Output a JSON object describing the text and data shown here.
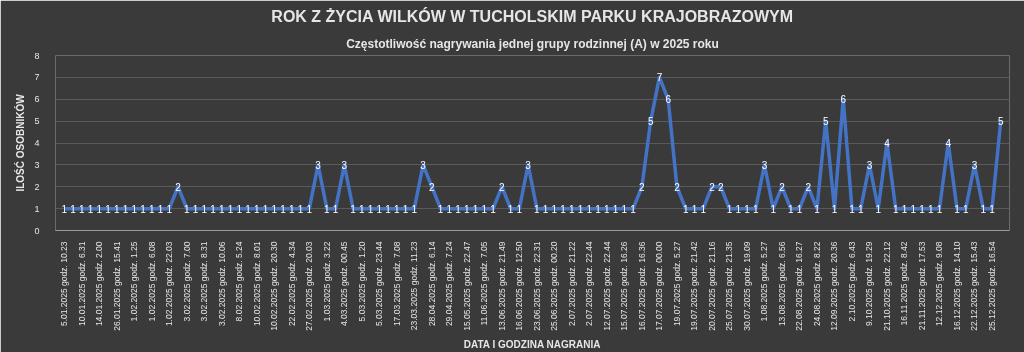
{
  "chart_data": {
    "type": "line",
    "title": "ROK Z ŻYCIA WILKÓW W TUCHOLSKIM PARKU KRAJOBRAZOWYM",
    "subtitle": "Częstotliwość nagrywania jednej grupy rodzinnej (A) w 2025 roku",
    "xlabel": "DATA I GODZINA NAGRANIA",
    "ylabel": "ILOŚĆ OSOBNIKÓW",
    "categories": [
      "5.01.2025 godz. 10.23",
      null,
      "10.01.2025 godz. 6.31",
      null,
      "14.01.2025 godz. 2.00",
      null,
      "26.01.2025 godz. 15.41",
      null,
      "1.02.2025 godz. 1.25",
      null,
      "1.02.2025 godz. 6.08",
      null,
      "1.02.2025 godz. 22.03",
      null,
      "3.02.2025 godz. 7.00",
      null,
      "3.02.2025 godz. 8.31",
      null,
      "3.02.2025 godz. 10.06",
      null,
      "8.02.2025 godz. 5.24",
      null,
      "10.02.2025 godz. 8.01",
      null,
      "10.02.2025 godz. 20.30",
      null,
      "22.02.2025 godz. 4.34",
      null,
      "27.02.2025 godz. 20.03",
      null,
      "1.03.2025 godz. 3.22",
      null,
      "4.03.2025 godz. 00.45",
      null,
      "5.03.2025 godz. 1.20",
      null,
      "5.03.2025 godz. 23.44",
      null,
      "17.03.2025 godz. 7.08",
      null,
      "23.03.2025 godz. 11.23",
      null,
      "28.04.2025 godz. 6.14",
      null,
      "29.04.2025 godz. 7.24",
      null,
      "15.05.2025 godz. 22.47",
      null,
      "11.06.2025 godz. 7.05",
      null,
      "13.06.2025 godz. 21.49",
      null,
      "16.06.2025 godz. 12.50",
      null,
      "23.06.2025 godz. 22.31",
      null,
      "25.06.2025 godz. 00.20",
      null,
      "2.07.2025 godz. 21.22",
      null,
      "2.07.2025 godz. 22.44",
      null,
      "12.07.2025 godz. 22.44",
      null,
      "15.07.2025 godz. 16.26",
      null,
      "16.07.2025 godz. 16.36",
      null,
      "17.07.2025 godz. 00.00",
      null,
      "19.07.2025 godz. 5.27",
      null,
      "19.07.2025 godz. 21.42",
      null,
      "20.07.2025 godz. 21.16",
      null,
      "25.07.2025 godz. 21.35",
      null,
      "30.07.2025 godz. 19.09",
      null,
      "1.08.2025 godz. 5.27",
      null,
      "13.08.2025 godz. 6.56",
      null,
      "22.08.2025 godz. 16.27",
      null,
      "24.08.2025 godz. 8.22",
      null,
      "12.09.2025 godz. 20.36",
      null,
      "2.10.2025 godz. 6.43",
      null,
      "9.10.2025 godz. 19.29",
      null,
      "21.10.2025 godz. 22.12",
      null,
      "16.11.2025 godz. 8.42",
      null,
      "21.11.2025 godz. 17.53",
      null,
      "12.12.2025 godz. 9.08",
      null,
      "16.12.2025 godz. 14.10",
      null,
      "22.12.2025 godz. 15.43",
      null,
      "25.12.2025 godz. 16.54",
      null
    ],
    "series": [
      {
        "color": "#4472c4",
        "values": [
          1,
          1,
          1,
          1,
          1,
          1,
          1,
          1,
          1,
          1,
          1,
          1,
          1,
          2,
          1,
          1,
          1,
          1,
          1,
          1,
          1,
          1,
          1,
          1,
          1,
          1,
          1,
          1,
          1,
          3,
          1,
          1,
          3,
          1,
          1,
          1,
          1,
          1,
          1,
          1,
          1,
          3,
          2,
          1,
          1,
          1,
          1,
          1,
          1,
          1,
          2,
          1,
          1,
          3,
          1,
          1,
          1,
          1,
          1,
          1,
          1,
          1,
          1,
          1,
          1,
          1,
          2,
          5,
          7,
          6,
          2,
          1,
          1,
          1,
          2,
          2,
          1,
          1,
          1,
          1,
          3,
          1,
          2,
          1,
          1,
          2,
          1,
          5,
          1,
          6,
          1,
          1,
          3,
          1,
          4,
          1,
          1,
          1,
          1,
          1,
          1,
          4,
          1,
          1,
          3,
          1,
          1,
          5
        ]
      }
    ],
    "ylim": [
      0,
      8
    ],
    "yticks": [
      0,
      1,
      2,
      3,
      4,
      5,
      6,
      7,
      8
    ],
    "grid": "y",
    "data_labels": true,
    "marker": "none"
  }
}
